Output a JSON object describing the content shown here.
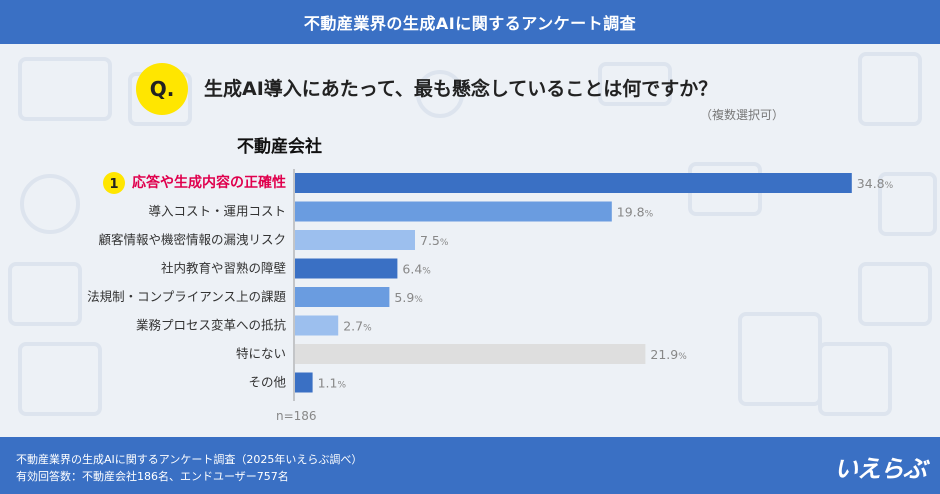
{
  "header": {
    "title": "不動産業界の生成AIに関するアンケート調査"
  },
  "question": {
    "badge": "Q.",
    "text": "生成AI導入にあたって、最も懸念していることは何ですか？",
    "note": "（複数選択可）"
  },
  "section": {
    "title": "不動産会社"
  },
  "chart_data": {
    "type": "bar",
    "orientation": "horizontal",
    "title": "不動産会社",
    "categories": [
      "応答や生成内容の正確性",
      "導入コスト・運用コスト",
      "顧客情報や機密情報の漏洩リスク",
      "社内教育や習熟の障壁",
      "法規制・コンプライアンス上の課題",
      "業務プロセス変革への抵抗",
      "特にない",
      "その他"
    ],
    "values": [
      34.8,
      19.8,
      7.5,
      6.4,
      5.9,
      2.7,
      21.9,
      1.1
    ],
    "unit": "%",
    "rank_marker": {
      "label": "1",
      "category_index": 0
    },
    "colors": [
      "#3a70c4",
      "#6a9ce0",
      "#9cbfee",
      "#3a70c4",
      "#6a9ce0",
      "#9cbfee",
      "#dedede",
      "#3a70c4"
    ],
    "highlight_color": "#e0004d",
    "xlim": [
      0,
      35
    ],
    "sample_size": "n=186"
  },
  "footer": {
    "line1": "不動産業界の生成AIに関するアンケート調査（2025年いえらぶ調べ）",
    "line2": "有効回答数：不動産会社186名、エンドユーザー757名",
    "logo": "いえらぶ"
  }
}
